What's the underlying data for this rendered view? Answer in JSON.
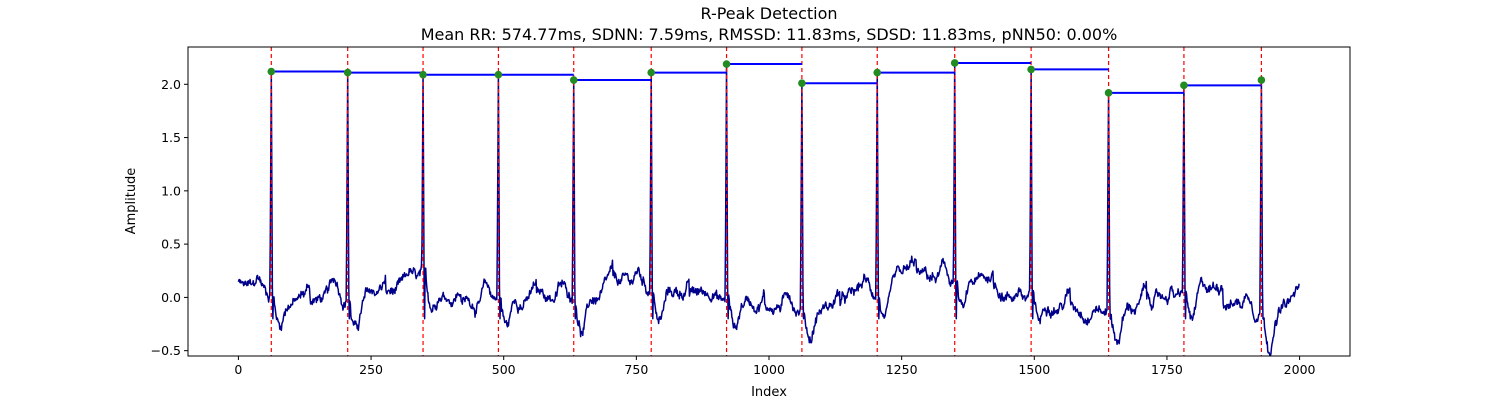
{
  "chart_data": {
    "type": "line",
    "title": "R-Peak Detection",
    "subtitle": "Mean RR: 574.77ms, SDNN: 7.59ms, RMSSD: 11.83ms, SDSD: 11.83ms, pNN50: 0.00%",
    "xlabel": "Index",
    "ylabel": "Amplitude",
    "xlim": [
      -95,
      2095
    ],
    "ylim": [
      -0.55,
      2.35
    ],
    "xticks": [
      0,
      250,
      500,
      750,
      1000,
      1250,
      1500,
      1750,
      2000
    ],
    "yticks": [
      -0.5,
      0.0,
      0.5,
      1.0,
      1.5,
      2.0
    ],
    "grid": false,
    "signal_color": "#00008b",
    "peak_line_color": "#ff0000",
    "peak_marker_color": "#228b22",
    "rr_line_color": "#0000ff",
    "signal_length": 2000,
    "r_peaks": [
      {
        "x": 62,
        "y": 2.12
      },
      {
        "x": 206,
        "y": 2.11
      },
      {
        "x": 348,
        "y": 2.09
      },
      {
        "x": 490,
        "y": 2.09
      },
      {
        "x": 632,
        "y": 2.04
      },
      {
        "x": 778,
        "y": 2.11
      },
      {
        "x": 920,
        "y": 2.19
      },
      {
        "x": 1062,
        "y": 2.01
      },
      {
        "x": 1204,
        "y": 2.11
      },
      {
        "x": 1350,
        "y": 2.2
      },
      {
        "x": 1494,
        "y": 2.14
      },
      {
        "x": 1640,
        "y": 1.92
      },
      {
        "x": 1782,
        "y": 1.99
      },
      {
        "x": 1928,
        "y": 2.04
      }
    ]
  }
}
